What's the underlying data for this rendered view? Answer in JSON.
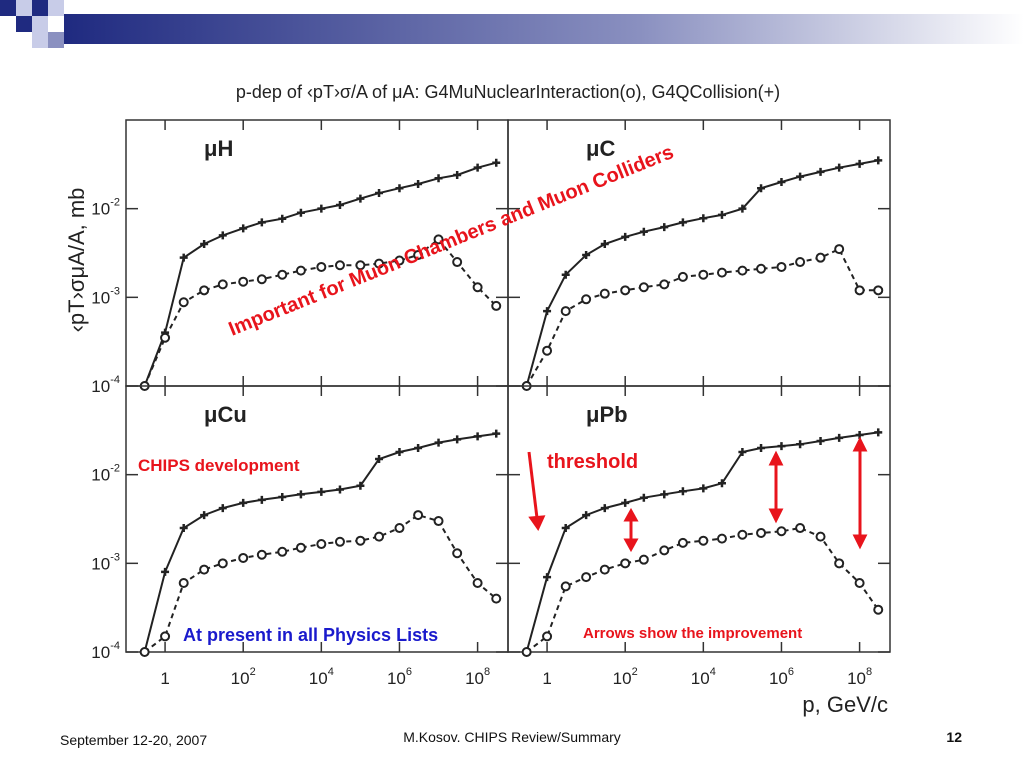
{
  "slide": {
    "date": "September 12-20, 2007",
    "footer": "M.Kosov. CHIPS Review/Summary",
    "page_number": "12"
  },
  "chart_data": {
    "type": "line",
    "title": "p-dep of ‹pT›σ/A of μA: G4MuNuclearInteraction(o), G4QCollision(+)",
    "ylabel": "‹pT›σμA/A, mb",
    "xlabel": "p, GeV/c",
    "xscale": "log",
    "yscale": "log",
    "xlim": [
      0.1,
      600000000
    ],
    "ylim": [
      0.0001,
      0.1
    ],
    "xticks": [
      1,
      {
        "value": 100,
        "label": "10",
        "exponent": "2"
      },
      {
        "value": 10000,
        "label": "10",
        "exponent": "4"
      },
      {
        "value": 1000000,
        "label": "10",
        "exponent": "6"
      },
      {
        "value": 100000000,
        "label": "10",
        "exponent": "8"
      }
    ],
    "yticks": [
      {
        "value": 0.0001,
        "label": "10",
        "exponent": "-4"
      },
      {
        "value": 0.001,
        "label": "10",
        "exponent": "-3"
      },
      {
        "value": 0.01,
        "label": "10",
        "exponent": "-2"
      }
    ],
    "x": [
      0.3,
      1,
      3,
      10,
      30,
      100,
      300,
      1000,
      3000,
      10000,
      30000,
      100000,
      300000,
      1000000,
      3000000,
      10000000,
      30000000,
      100000000,
      300000000
    ],
    "panels": [
      {
        "label": "μH",
        "series": [
          {
            "marker": "plus",
            "line": "solid",
            "color": "#222222",
            "values": [
              0.0001,
              0.0004,
              0.0028,
              0.004,
              0.005,
              0.006,
              0.007,
              0.0077,
              0.009,
              0.01,
              0.011,
              0.013,
              0.015,
              0.017,
              0.019,
              0.022,
              0.024,
              0.029,
              0.033
            ]
          },
          {
            "marker": "circle",
            "line": "dashed",
            "color": "#222222",
            "values": [
              0.0001,
              0.00035,
              0.00088,
              0.0012,
              0.0014,
              0.0015,
              0.0016,
              0.0018,
              0.002,
              0.0022,
              0.0023,
              0.0023,
              0.0024,
              0.0026,
              0.003,
              0.0045,
              0.0025,
              0.0013,
              0.0008
            ]
          }
        ]
      },
      {
        "label": "μC",
        "series": [
          {
            "marker": "plus",
            "line": "solid",
            "color": "#222222",
            "values": [
              0.0001,
              0.0007,
              0.0018,
              0.003,
              0.004,
              0.0048,
              0.0055,
              0.0062,
              0.007,
              0.0078,
              0.0085,
              0.01,
              0.017,
              0.02,
              0.023,
              0.026,
              0.029,
              0.032,
              0.035
            ]
          },
          {
            "marker": "circle",
            "line": "dashed",
            "color": "#222222",
            "values": [
              0.0001,
              0.00025,
              0.0007,
              0.00095,
              0.0011,
              0.0012,
              0.0013,
              0.0014,
              0.0017,
              0.0018,
              0.0019,
              0.002,
              0.0021,
              0.0022,
              0.0025,
              0.0028,
              0.0035,
              0.0012,
              0.0012
            ]
          }
        ]
      },
      {
        "label": "μCu",
        "series": [
          {
            "marker": "plus",
            "line": "solid",
            "color": "#222222",
            "values": [
              0.0001,
              0.0008,
              0.0025,
              0.0035,
              0.0042,
              0.0048,
              0.0052,
              0.0056,
              0.006,
              0.0064,
              0.0068,
              0.0075,
              0.015,
              0.018,
              0.02,
              0.023,
              0.025,
              0.027,
              0.029
            ]
          },
          {
            "marker": "circle",
            "line": "dashed",
            "color": "#222222",
            "values": [
              0.0001,
              0.00015,
              0.0006,
              0.00085,
              0.001,
              0.00115,
              0.00125,
              0.00135,
              0.0015,
              0.00165,
              0.00175,
              0.0018,
              0.002,
              0.0025,
              0.0035,
              0.003,
              0.0013,
              0.0006,
              0.0004
            ]
          }
        ]
      },
      {
        "label": "μPb",
        "series": [
          {
            "marker": "plus",
            "line": "solid",
            "color": "#222222",
            "values": [
              0.0001,
              0.0007,
              0.0025,
              0.0035,
              0.0042,
              0.0048,
              0.0055,
              0.006,
              0.0065,
              0.007,
              0.008,
              0.018,
              0.02,
              0.021,
              0.022,
              0.024,
              0.026,
              0.028,
              0.03
            ]
          },
          {
            "marker": "circle",
            "line": "dashed",
            "color": "#222222",
            "values": [
              0.0001,
              0.00015,
              0.00055,
              0.0007,
              0.00085,
              0.001,
              0.0011,
              0.0014,
              0.0017,
              0.0018,
              0.0019,
              0.0021,
              0.0022,
              0.0023,
              0.0025,
              0.002,
              0.001,
              0.0006,
              0.0003
            ]
          }
        ]
      }
    ],
    "annotations": [
      {
        "text": "Important for Muon Chambers and Muon Colliders",
        "color": "#e8141c"
      },
      {
        "text": "CHIPS development",
        "color": "#e8141c"
      },
      {
        "text": "threshold",
        "color": "#e8141c"
      },
      {
        "text": "At present in all Physics Lists",
        "color": "#1a1acc"
      },
      {
        "text": "Arrows show the improvement",
        "color": "#e8141c"
      }
    ]
  }
}
